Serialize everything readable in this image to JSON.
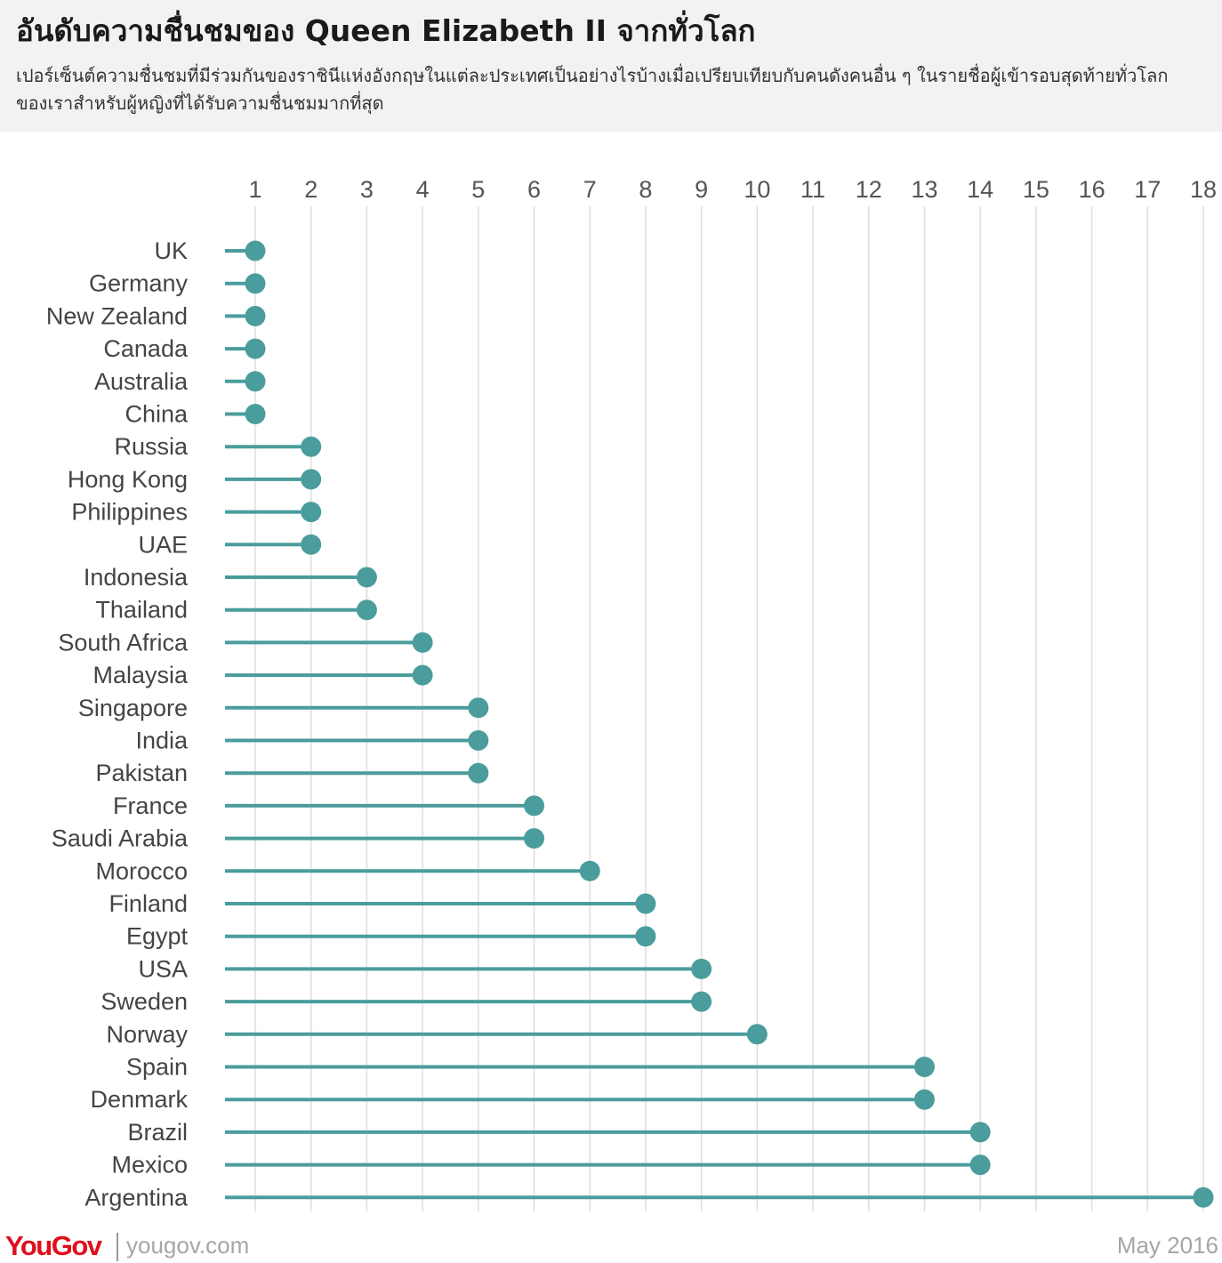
{
  "header": {
    "title": "อันดับความชื่นชมของ Queen Elizabeth II จากทั่วโลก",
    "subtitle": "เปอร์เซ็นต์ความชื่นชมที่มีร่วมกันของราชินีแห่งอังกฤษในแต่ละประเทศเป็นอย่างไรบ้างเมื่อเปรียบเทียบกับคนดังคนอื่น ๆ ในรายชื่อผู้เข้ารอบสุดท้ายทั่วโลกของเราสำหรับผู้หญิงที่ได้รับความชื่นชมมากที่สุด"
  },
  "footer": {
    "logo_you": "You",
    "logo_gov": "Gov",
    "site": "yougov.com",
    "date": "May 2016"
  },
  "colors": {
    "accent": "#4a9d9c",
    "gridline": "#dedede",
    "tick_text": "#555555",
    "label_text": "#444444",
    "header_bg": "#f2f2f2",
    "brand": "#e10e1d"
  },
  "chart_data": {
    "type": "lollipop",
    "xlabel": "",
    "ylabel": "",
    "xlim": [
      1,
      18
    ],
    "x_ticks": [
      "1",
      "2",
      "3",
      "4",
      "5",
      "6",
      "7",
      "8",
      "9",
      "10",
      "11",
      "12",
      "13",
      "14",
      "15",
      "16",
      "17",
      "18"
    ],
    "x_axis_position": "top",
    "grid": true,
    "categories": [
      "UK",
      "Germany",
      "New Zealand",
      "Canada",
      "Australia",
      "China",
      "Russia",
      "Hong Kong",
      "Philippines",
      "UAE",
      "Indonesia",
      "Thailand",
      "South Africa",
      "Malaysia",
      "Singapore",
      "India",
      "Pakistan",
      "France",
      "Saudi Arabia",
      "Morocco",
      "Finland",
      "Egypt",
      "USA",
      "Sweden",
      "Norway",
      "Spain",
      "Denmark",
      "Brazil",
      "Mexico",
      "Argentina"
    ],
    "values": [
      1,
      1,
      1,
      1,
      1,
      1,
      2,
      2,
      2,
      2,
      3,
      3,
      4,
      4,
      5,
      5,
      5,
      6,
      6,
      7,
      8,
      8,
      9,
      9,
      10,
      13,
      13,
      14,
      14,
      18
    ]
  }
}
